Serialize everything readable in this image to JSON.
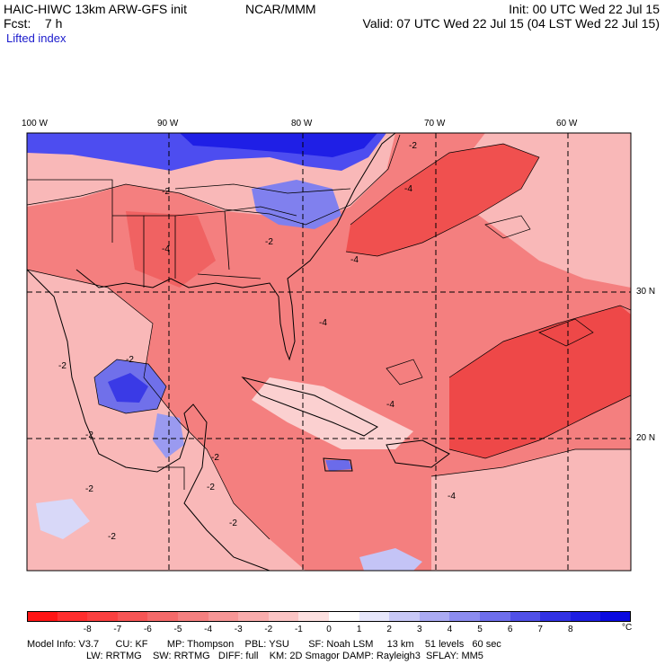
{
  "header": {
    "model": "HAIC-HIWC 13km ARW-GFS init",
    "org": "NCAR/MMM",
    "init": "Init: 00 UTC Wed 22 Jul 15",
    "fcst": "Fcst:    7 h",
    "valid": "Valid: 07 UTC Wed 22 Jul 15 (04 LST Wed 22 Jul 15)",
    "field": "Lifted index"
  },
  "map": {
    "lon_labels": [
      "100 W",
      "90 W",
      "80 W",
      "70 W",
      "60 W"
    ],
    "lat_labels": [
      "30 N",
      "20 N"
    ],
    "contour_labels": [
      "-2",
      "-2",
      "-4",
      "-2",
      "-4",
      "-2",
      "-4",
      "-2",
      "-2",
      "-4",
      "-2",
      "-2",
      "-4",
      "-2",
      "-4",
      "-2",
      "-2"
    ],
    "colors": {
      "strong_negative": "#f23c3c",
      "negative": "#f47f7f",
      "weak_negative": "#f9b8b8",
      "neutral": "#ffffff",
      "positive": "#8c8cf0",
      "strong_positive": "#1f1fe6"
    }
  },
  "colorbar": {
    "ticks": [
      "-8",
      "-7",
      "-6",
      "-5",
      "-4",
      "-3",
      "-2",
      "-1",
      "0",
      "1",
      "2",
      "3",
      "4",
      "5",
      "6",
      "7",
      "8"
    ],
    "unit": "°C",
    "colors": [
      "#ff1414",
      "#ff2e2e",
      "#fa4040",
      "#f75555",
      "#f56a6a",
      "#f58080",
      "#f79696",
      "#f9acac",
      "#fbc4c4",
      "#fde0e0",
      "#ffffff",
      "#e6e6fb",
      "#c8c8f7",
      "#aaaaf3",
      "#8c8cf0",
      "#6e6eec",
      "#5050e8",
      "#3232e4",
      "#1e1ee2",
      "#0a0ae0"
    ]
  },
  "model_info": {
    "line1": "Model Info: V3.7      CU: KF       MP: Thompson    PBL: YSU       SF: Noah LSM     13 km    51 levels   60 sec",
    "line2": "LW: RRTMG    SW: RRTMG   DIFF: full    KM: 2D Smagor DAMP: Rayleigh3  SFLAY: MM5"
  }
}
